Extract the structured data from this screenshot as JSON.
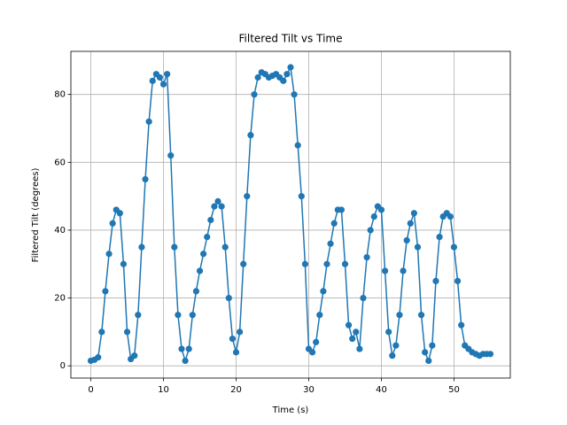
{
  "chart_data": {
    "type": "line",
    "title": "Filtered Tilt vs Time",
    "x_label": "Time (s)",
    "y_label": "Filtered Tilt (degrees)",
    "x": [
      0,
      0.5,
      1,
      1.5,
      2,
      2.5,
      3,
      3.5,
      4,
      4.5,
      5,
      5.5,
      6,
      6.5,
      7,
      7.5,
      8,
      8.5,
      9,
      9.5,
      10,
      10.5,
      11,
      11.5,
      12,
      12.5,
      13,
      13.5,
      14,
      14.5,
      15,
      15.5,
      16,
      16.5,
      17,
      17.5,
      18,
      18.5,
      19,
      19.5,
      20,
      20.5,
      21,
      21.5,
      22,
      22.5,
      23,
      23.5,
      24,
      24.5,
      25,
      25.5,
      26,
      26.5,
      27,
      27.5,
      28,
      28.5,
      29,
      29.5,
      30,
      30.5,
      31,
      31.5,
      32,
      32.5,
      33,
      33.5,
      34,
      34.5,
      35,
      35.5,
      36,
      36.5,
      37,
      37.5,
      38,
      38.5,
      39,
      39.5,
      40,
      40.5,
      41,
      41.5,
      42,
      42.5,
      43,
      43.5,
      44,
      44.5,
      45,
      45.5,
      46,
      46.5,
      47,
      47.5,
      48,
      48.5,
      49,
      49.5,
      50,
      50.5,
      51,
      51.5,
      52,
      52.5,
      53,
      53.5,
      54,
      54.5,
      55
    ],
    "series": [
      {
        "color": "#1f77b4",
        "values": [
          1.5,
          1.8,
          2.5,
          10,
          22,
          33,
          42,
          46,
          45,
          30,
          10,
          2,
          3,
          15,
          35,
          55,
          72,
          84,
          86,
          85,
          83,
          86,
          62,
          35,
          15,
          5,
          1.5,
          5,
          15,
          22,
          28,
          33,
          38,
          43,
          47,
          48.5,
          47,
          35,
          20,
          8,
          4,
          10,
          30,
          50,
          68,
          80,
          85,
          86.5,
          86,
          85,
          85.5,
          86,
          85,
          84,
          86,
          88,
          80,
          65,
          50,
          30,
          5,
          4,
          7,
          15,
          22,
          30,
          36,
          42,
          46,
          46,
          30,
          12,
          8,
          10,
          5,
          20,
          32,
          40,
          44,
          47,
          46,
          28,
          10,
          3,
          6,
          15,
          28,
          37,
          42,
          45,
          35,
          15,
          4,
          1.5,
          6,
          25,
          38,
          44,
          45,
          44,
          35,
          25,
          12,
          6,
          5,
          4,
          3.5,
          3,
          3.5,
          3.5,
          3.5
        ]
      }
    ],
    "xlim": [
      -2.75,
      57.75
    ],
    "ylim": [
      -3.6,
      92.7
    ],
    "xticks": [
      0,
      10,
      20,
      30,
      40,
      50
    ],
    "yticks": [
      0,
      20,
      40,
      60,
      80
    ],
    "grid": true
  }
}
